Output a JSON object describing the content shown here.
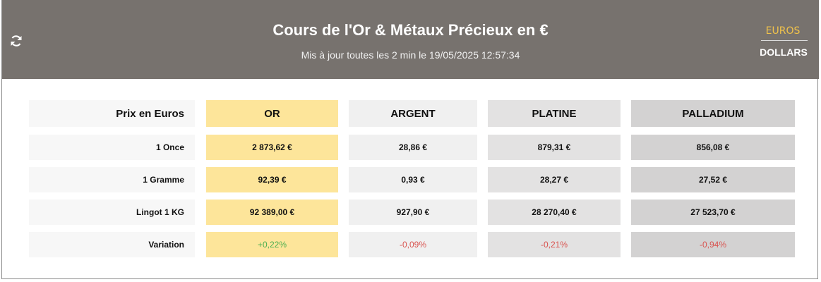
{
  "header": {
    "title": "Cours de l'Or & Métaux Précieux en €",
    "subtitle": "Mis à jour toutes les 2 min le 19/05/2025 12:57:34",
    "currencies": [
      "EUROS",
      "DOLLARS"
    ]
  },
  "table": {
    "header": [
      "Prix en Euros",
      "OR",
      "ARGENT",
      "PLATINE",
      "PALLADIUM"
    ],
    "rows": [
      [
        "1 Once",
        "2 873,62 €",
        "28,86 €",
        "879,31 €",
        "856,08 €"
      ],
      [
        "1 Gramme",
        "92,39 €",
        "0,93 €",
        "28,27 €",
        "27,52 €"
      ],
      [
        "Lingot 1 KG",
        "92 389,00 €",
        "927,90 €",
        "28 270,40 €",
        "27 523,70 €"
      ],
      [
        "Variation",
        "+0,22%",
        "-0,09%",
        "-0,21%",
        "-0,94%"
      ]
    ]
  }
}
